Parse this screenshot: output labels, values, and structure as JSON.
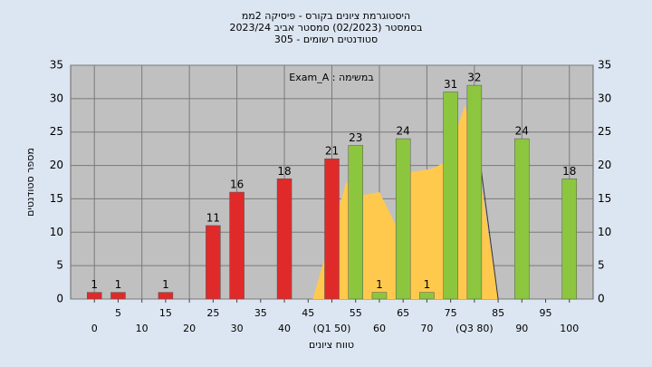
{
  "chart_data": {
    "type": "bar",
    "title": "היסטוגרמת ציונים בקורס - פיסיקה 2ממ",
    "subtitle": "בסמסטר  (02/2023)  סמסטר אביב 2023/24",
    "subtitle2": "305 - סטודנטים רשומים",
    "annotation": "Exam_A : במשימה",
    "x_label": "טווח ציונים",
    "y_label": "מספר סטודנטים",
    "x": [
      0,
      5,
      15,
      25,
      30,
      40,
      50,
      55,
      60,
      65,
      70,
      75,
      80,
      90,
      100
    ],
    "series": [
      {
        "color": "#e02a2a",
        "values": [
          1,
          1,
          1,
          11,
          16,
          18,
          21,
          null,
          null,
          null,
          null,
          null,
          null,
          null,
          null
        ]
      },
      {
        "color": "#8cc63f",
        "values": [
          null,
          null,
          null,
          null,
          null,
          null,
          null,
          23,
          1,
          24,
          1,
          31,
          32,
          24,
          18
        ]
      }
    ],
    "area": {
      "color": "#ffc94d",
      "x": [
        46,
        53,
        56,
        60,
        63.5,
        66.5,
        71,
        74,
        78,
        80,
        85
      ],
      "values": [
        0,
        17.5,
        15.5,
        16,
        11,
        19,
        19.5,
        20.5,
        29,
        24,
        0
      ]
    },
    "line": {
      "color": "#333333",
      "x": [
        80,
        85
      ],
      "values": [
        27,
        0
      ]
    },
    "xlim": [
      -5,
      105
    ],
    "ylim": [
      0,
      35
    ],
    "yticks": [
      0,
      5,
      10,
      15,
      20,
      25,
      30,
      35
    ],
    "xticks": [
      0,
      5,
      10,
      15,
      20,
      25,
      30,
      35,
      40,
      45,
      {
        "value": 50,
        "label": "(Q1 50)"
      },
      55,
      60,
      65,
      70,
      75,
      {
        "value": 80,
        "label": "(Q3 80)"
      },
      85,
      90,
      95,
      100
    ],
    "grid": true
  }
}
